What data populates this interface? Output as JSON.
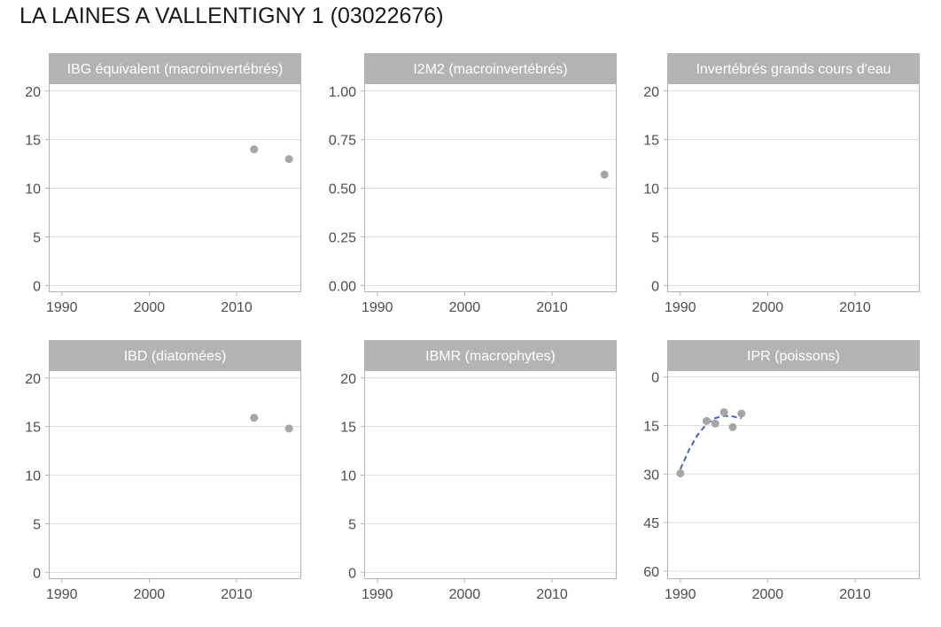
{
  "title": "LA LAINES A VALLENTIGNY 1 (03022676)",
  "colors": {
    "strip": "#b3b3b3",
    "panel_border": "#b3b3b3",
    "grid": "#dedede",
    "point": "#a6a6a6",
    "trend": "#3366dd",
    "tick_text": "#4d4d4d"
  },
  "chart_data": [
    {
      "type": "scatter",
      "title": "IBG équivalent (macroinvertébrés)",
      "xlim": [
        1988.5,
        2017.4
      ],
      "xticks": [
        1990,
        2000,
        2010
      ],
      "ylim": [
        -0.7,
        20.8
      ],
      "yticks": [
        0,
        5,
        10,
        15,
        20
      ],
      "ytick_labels": [
        "0",
        "5",
        "10",
        "15",
        "20"
      ],
      "y_reversed": false,
      "grid": true,
      "points": [
        {
          "x": 2012,
          "y": 14
        },
        {
          "x": 2016,
          "y": 13
        }
      ],
      "trend": []
    },
    {
      "type": "scatter",
      "title": "I2M2 (macroinvertébrés)",
      "xlim": [
        1988.5,
        2017.4
      ],
      "xticks": [
        1990,
        2000,
        2010
      ],
      "ylim": [
        -0.035,
        1.04
      ],
      "yticks": [
        0,
        0.25,
        0.5,
        0.75,
        1
      ],
      "ytick_labels": [
        "0.00",
        "0.25",
        "0.50",
        "0.75",
        "1.00"
      ],
      "y_reversed": false,
      "grid": true,
      "points": [
        {
          "x": 2016,
          "y": 0.57
        }
      ],
      "trend": []
    },
    {
      "type": "scatter",
      "title": "Invertébrés grands cours d'eau",
      "xlim": [
        1988.5,
        2017.4
      ],
      "xticks": [
        1990,
        2000,
        2010
      ],
      "ylim": [
        -0.7,
        20.8
      ],
      "yticks": [
        0,
        5,
        10,
        15,
        20
      ],
      "ytick_labels": [
        "0",
        "5",
        "10",
        "15",
        "20"
      ],
      "y_reversed": false,
      "grid": true,
      "points": [],
      "trend": []
    },
    {
      "type": "scatter",
      "title": "IBD (diatomées)",
      "xlim": [
        1988.5,
        2017.4
      ],
      "xticks": [
        1990,
        2000,
        2010
      ],
      "ylim": [
        -0.7,
        20.8
      ],
      "yticks": [
        0,
        5,
        10,
        15,
        20
      ],
      "ytick_labels": [
        "0",
        "5",
        "10",
        "15",
        "20"
      ],
      "y_reversed": false,
      "grid": true,
      "points": [
        {
          "x": 2012,
          "y": 15.9
        },
        {
          "x": 2016,
          "y": 14.8
        }
      ],
      "trend": []
    },
    {
      "type": "scatter",
      "title": "IBMR (macrophytes)",
      "xlim": [
        1988.5,
        2017.4
      ],
      "xticks": [
        1990,
        2000,
        2010
      ],
      "ylim": [
        -0.7,
        20.8
      ],
      "yticks": [
        0,
        5,
        10,
        15,
        20
      ],
      "ytick_labels": [
        "0",
        "5",
        "10",
        "15",
        "20"
      ],
      "y_reversed": false,
      "grid": true,
      "points": [],
      "trend": []
    },
    {
      "type": "scatter",
      "title": "IPR (poissons)",
      "xlim": [
        1988.5,
        2017.4
      ],
      "xticks": [
        1990,
        2000,
        2010
      ],
      "ylim": [
        -2.1,
        62.5
      ],
      "yticks": [
        0,
        15,
        30,
        45,
        60
      ],
      "ytick_labels": [
        "0",
        "15",
        "30",
        "45",
        "60"
      ],
      "y_reversed": true,
      "grid": true,
      "points": [
        {
          "x": 1990,
          "y": 29.8
        },
        {
          "x": 1993,
          "y": 13.6
        },
        {
          "x": 1994,
          "y": 14.4
        },
        {
          "x": 1995,
          "y": 10.9
        },
        {
          "x": 1996,
          "y": 15.5
        },
        {
          "x": 1997,
          "y": 11.3
        }
      ],
      "trend": [
        {
          "x": 1990,
          "y": 28.5
        },
        {
          "x": 1991,
          "y": 22.5
        },
        {
          "x": 1992,
          "y": 17.8
        },
        {
          "x": 1993,
          "y": 14.6
        },
        {
          "x": 1994,
          "y": 12.7
        },
        {
          "x": 1995,
          "y": 12.0
        },
        {
          "x": 1996,
          "y": 12.2
        },
        {
          "x": 1997,
          "y": 12.8
        }
      ]
    }
  ]
}
